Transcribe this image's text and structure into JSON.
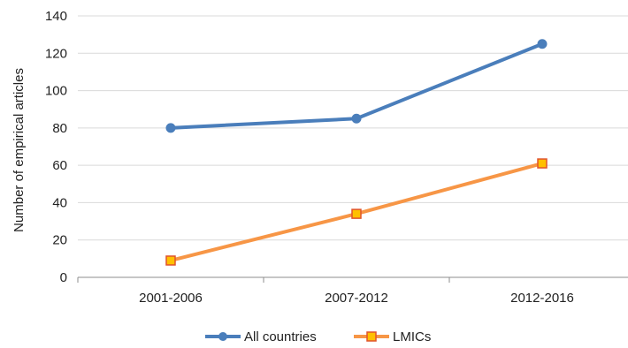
{
  "chart_data": {
    "type": "line",
    "title": "",
    "xlabel": "",
    "ylabel": "Number of empirical articles",
    "categories": [
      "2001-2006",
      "2007-2012",
      "2012-2016"
    ],
    "ylim": [
      0,
      140
    ],
    "yticks": [
      0,
      20,
      40,
      60,
      80,
      100,
      120,
      140
    ],
    "ytick_labels": [
      "0",
      "20",
      "40",
      "60",
      "80",
      "100",
      "120",
      "140"
    ],
    "grid": true,
    "legend_position": "bottom",
    "series": [
      {
        "name": "All countries",
        "values": [
          80,
          85,
          125
        ],
        "color": "#4a7ebb",
        "marker": "circle"
      },
      {
        "name": "LMICs",
        "values": [
          9,
          34,
          61
        ],
        "color": "#f79646",
        "marker_fill": "#ffc000",
        "marker_stroke": "#e0532b",
        "marker": "square"
      }
    ]
  }
}
